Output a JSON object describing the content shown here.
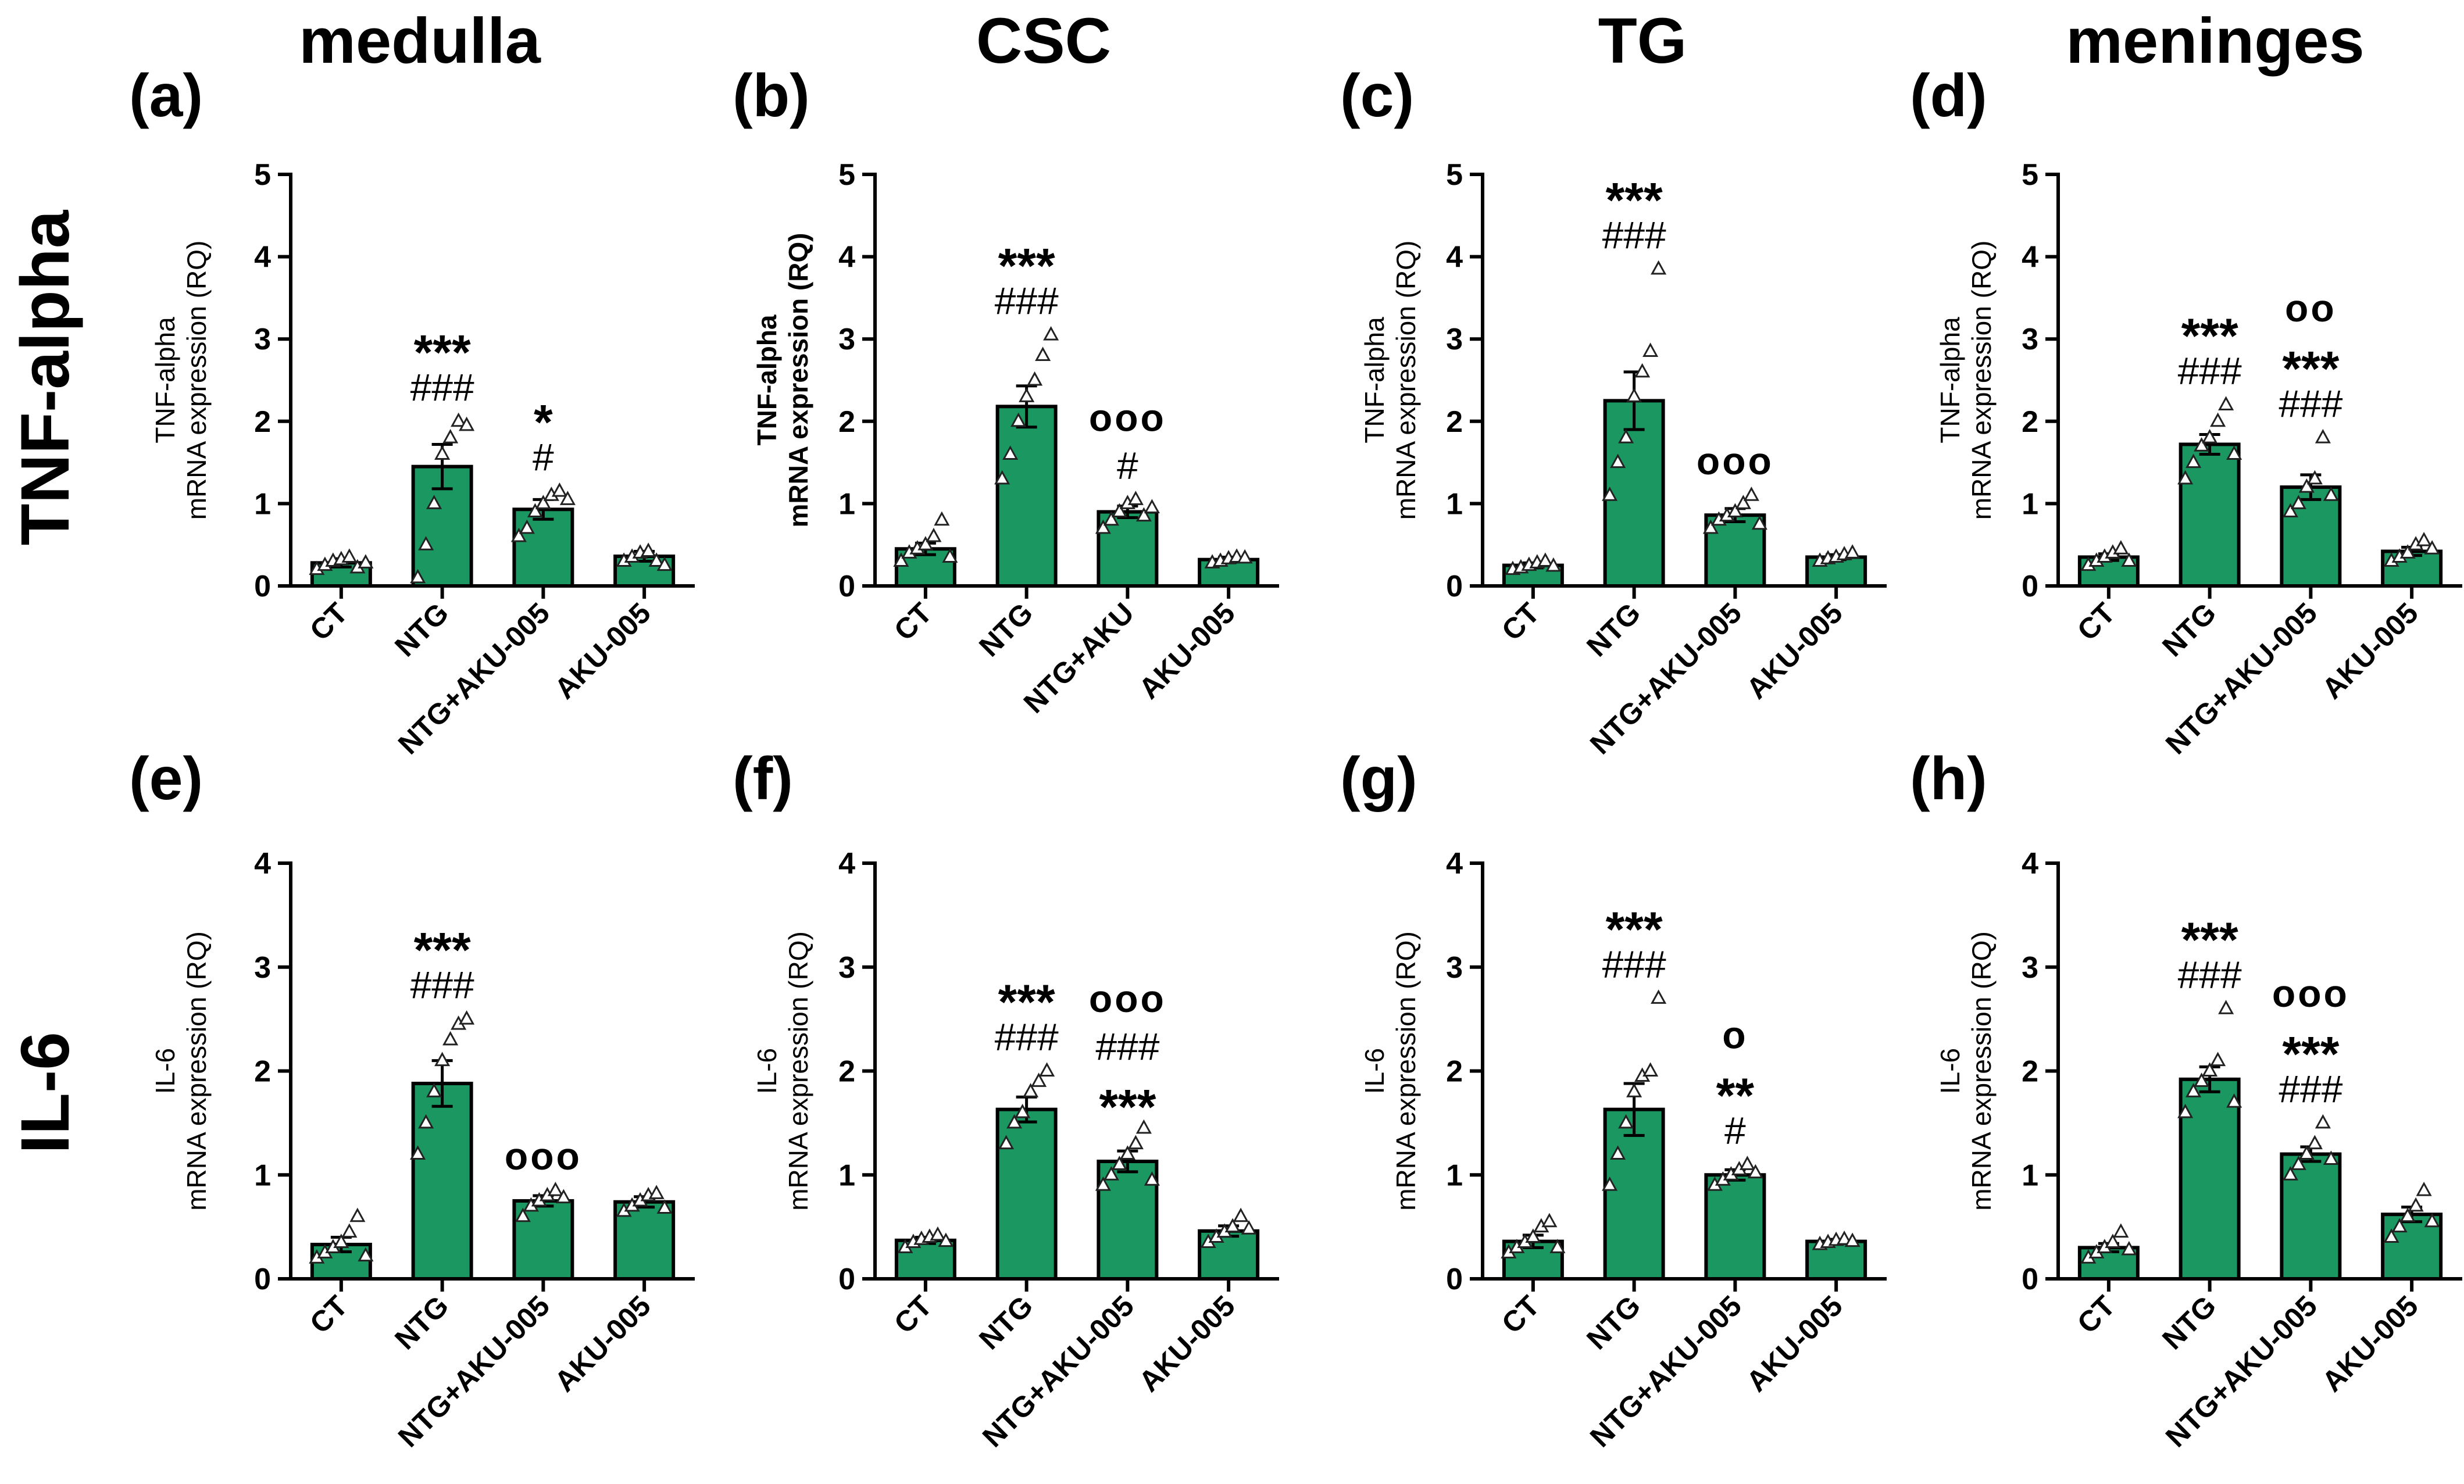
{
  "column_titles": [
    "medulla",
    "CSC",
    "TG",
    "meninges"
  ],
  "row_titles": [
    "TNF-alpha",
    "IL-6"
  ],
  "chart_data": [
    {
      "panel": "(a)",
      "type": "bar",
      "region": "medulla",
      "row": 0,
      "col": 0,
      "ylabel": [
        "TNF-alpha",
        "mRNA expression (RQ)"
      ],
      "ylabel_bold": false,
      "ylim": [
        0,
        5
      ],
      "yticks": [
        0,
        1,
        2,
        3,
        4,
        5
      ],
      "categories": [
        "CT",
        "NTG",
        "NTG+AKU-005",
        "AKU-005"
      ],
      "values": [
        0.28,
        1.45,
        0.93,
        0.36
      ],
      "sem": [
        0.05,
        0.27,
        0.12,
        0.06
      ],
      "points": [
        [
          0.2,
          0.25,
          0.3,
          0.32,
          0.35,
          0.22,
          0.28
        ],
        [
          0.1,
          0.5,
          1.0,
          1.6,
          1.8,
          2.0,
          1.95
        ],
        [
          0.6,
          0.7,
          0.9,
          1.0,
          1.1,
          1.15,
          1.05
        ],
        [
          0.3,
          0.35,
          0.4,
          0.42,
          0.3,
          0.25
        ]
      ],
      "annotations": [
        [],
        [
          "***",
          "###"
        ],
        [
          "*",
          "#"
        ],
        []
      ]
    },
    {
      "panel": "(b)",
      "type": "bar",
      "region": "CSC",
      "row": 0,
      "col": 1,
      "ylabel": [
        "TNF-alpha",
        "mRNA expression (RQ)"
      ],
      "ylabel_bold": true,
      "ylim": [
        0,
        5
      ],
      "yticks": [
        0,
        1,
        2,
        3,
        4,
        5
      ],
      "categories": [
        "CT",
        "NTG",
        "NTG+AKU",
        "AKU-005"
      ],
      "values": [
        0.45,
        2.18,
        0.9,
        0.32
      ],
      "sem": [
        0.07,
        0.25,
        0.07,
        0.03
      ],
      "points": [
        [
          0.3,
          0.4,
          0.45,
          0.5,
          0.6,
          0.8,
          0.35
        ],
        [
          1.3,
          1.6,
          2.0,
          2.3,
          2.5,
          2.8,
          3.05
        ],
        [
          0.7,
          0.8,
          0.9,
          1.0,
          1.05,
          0.85,
          0.95
        ],
        [
          0.28,
          0.3,
          0.33,
          0.35,
          0.34
        ]
      ],
      "annotations": [
        [],
        [
          "***",
          "###"
        ],
        [
          "ooo",
          "#"
        ],
        []
      ]
    },
    {
      "panel": "(c)",
      "type": "bar",
      "region": "TG",
      "row": 0,
      "col": 2,
      "ylabel": [
        "TNF-alpha",
        "mRNA expression (RQ)"
      ],
      "ylabel_bold": false,
      "ylim": [
        0,
        5
      ],
      "yticks": [
        0,
        1,
        2,
        3,
        4,
        5
      ],
      "categories": [
        "CT",
        "NTG",
        "NTG+AKU-005",
        "AKU-005"
      ],
      "values": [
        0.25,
        2.25,
        0.86,
        0.35
      ],
      "sem": [
        0.03,
        0.35,
        0.08,
        0.03
      ],
      "points": [
        [
          0.2,
          0.22,
          0.25,
          0.28,
          0.3,
          0.24
        ],
        [
          1.1,
          1.5,
          1.8,
          2.3,
          2.6,
          2.85,
          3.85
        ],
        [
          0.7,
          0.8,
          0.85,
          0.9,
          1.0,
          1.1,
          0.75
        ],
        [
          0.3,
          0.33,
          0.35,
          0.38,
          0.4
        ]
      ],
      "annotations": [
        [],
        [
          "***",
          "###"
        ],
        [
          "ooo"
        ],
        []
      ]
    },
    {
      "panel": "(d)",
      "type": "bar",
      "region": "meninges",
      "row": 0,
      "col": 3,
      "ylabel": [
        "TNF-alpha",
        "mRNA expression (RQ)"
      ],
      "ylabel_bold": false,
      "ylim": [
        0,
        5
      ],
      "yticks": [
        0,
        1,
        2,
        3,
        4,
        5
      ],
      "categories": [
        "CT",
        "NTG",
        "NTG+AKU-005",
        "AKU-005"
      ],
      "values": [
        0.35,
        1.72,
        1.2,
        0.42
      ],
      "sem": [
        0.04,
        0.12,
        0.15,
        0.05
      ],
      "points": [
        [
          0.25,
          0.3,
          0.35,
          0.4,
          0.45,
          0.3
        ],
        [
          1.3,
          1.5,
          1.7,
          1.8,
          2.0,
          2.2,
          1.6
        ],
        [
          0.9,
          1.0,
          1.2,
          1.3,
          1.8,
          1.1
        ],
        [
          0.3,
          0.35,
          0.4,
          0.5,
          0.55,
          0.45
        ]
      ],
      "annotations": [
        [],
        [
          "***",
          "###"
        ],
        [
          "oo",
          "***",
          "###"
        ],
        []
      ]
    },
    {
      "panel": "(e)",
      "type": "bar",
      "region": "medulla",
      "row": 1,
      "col": 0,
      "ylabel": [
        "IL-6",
        "mRNA expression (RQ)"
      ],
      "ylabel_bold": false,
      "ylim": [
        0,
        4
      ],
      "yticks": [
        0,
        1,
        2,
        3,
        4
      ],
      "categories": [
        "CT",
        "NTG",
        "NTG+AKU-005",
        "AKU-005"
      ],
      "values": [
        0.33,
        1.88,
        0.75,
        0.74
      ],
      "sem": [
        0.07,
        0.22,
        0.05,
        0.05
      ],
      "points": [
        [
          0.2,
          0.25,
          0.3,
          0.35,
          0.45,
          0.6,
          0.22
        ],
        [
          1.2,
          1.5,
          1.8,
          2.1,
          2.3,
          2.45,
          2.5
        ],
        [
          0.6,
          0.7,
          0.75,
          0.8,
          0.85,
          0.78
        ],
        [
          0.65,
          0.7,
          0.75,
          0.8,
          0.82,
          0.68
        ]
      ],
      "annotations": [
        [],
        [
          "***",
          "###"
        ],
        [
          "ooo"
        ],
        []
      ]
    },
    {
      "panel": "(f)",
      "type": "bar",
      "region": "CSC",
      "row": 1,
      "col": 1,
      "ylabel": [
        "IL-6",
        "mRNA expression (RQ)"
      ],
      "ylabel_bold": false,
      "ylim": [
        0,
        4
      ],
      "yticks": [
        0,
        1,
        2,
        3,
        4
      ],
      "categories": [
        "CT",
        "NTG",
        "NTG+AKU-005",
        "AKU-005"
      ],
      "values": [
        0.37,
        1.63,
        1.13,
        0.46
      ],
      "sem": [
        0.03,
        0.12,
        0.1,
        0.05
      ],
      "points": [
        [
          0.3,
          0.35,
          0.38,
          0.4,
          0.42,
          0.36
        ],
        [
          1.3,
          1.5,
          1.6,
          1.8,
          1.9,
          2.0
        ],
        [
          0.9,
          1.0,
          1.1,
          1.2,
          1.3,
          1.45,
          0.95
        ],
        [
          0.35,
          0.4,
          0.45,
          0.5,
          0.6,
          0.48
        ]
      ],
      "annotations": [
        [],
        [
          "***",
          "###"
        ],
        [
          "ooo",
          "###",
          "***"
        ],
        []
      ]
    },
    {
      "panel": "(g)",
      "type": "bar",
      "region": "TG",
      "row": 1,
      "col": 2,
      "ylabel": [
        "IL-6",
        "mRNA expression (RQ)"
      ],
      "ylabel_bold": false,
      "ylim": [
        0,
        4
      ],
      "yticks": [
        0,
        1,
        2,
        3,
        4
      ],
      "categories": [
        "CT",
        "NTG",
        "NTG+AKU-005",
        "AKU-005"
      ],
      "values": [
        0.36,
        1.63,
        1.0,
        0.36
      ],
      "sem": [
        0.06,
        0.25,
        0.05,
        0.02
      ],
      "points": [
        [
          0.25,
          0.3,
          0.35,
          0.4,
          0.5,
          0.55,
          0.3
        ],
        [
          0.9,
          1.2,
          1.5,
          1.8,
          1.95,
          2.0,
          2.7
        ],
        [
          0.9,
          0.95,
          1.0,
          1.05,
          1.1,
          1.02
        ],
        [
          0.33,
          0.35,
          0.37,
          0.38,
          0.36
        ]
      ],
      "annotations": [
        [],
        [
          "***",
          "###"
        ],
        [
          "o",
          "**",
          "#"
        ],
        []
      ]
    },
    {
      "panel": "(h)",
      "type": "bar",
      "region": "meninges",
      "row": 1,
      "col": 3,
      "ylabel": [
        "IL-6",
        "mRNA expression (RQ)"
      ],
      "ylabel_bold": false,
      "ylim": [
        0,
        4
      ],
      "yticks": [
        0,
        1,
        2,
        3,
        4
      ],
      "categories": [
        "CT",
        "NTG",
        "NTG+AKU-005",
        "AKU-005"
      ],
      "values": [
        0.3,
        1.92,
        1.2,
        0.62
      ],
      "sem": [
        0.04,
        0.12,
        0.07,
        0.07
      ],
      "points": [
        [
          0.2,
          0.25,
          0.3,
          0.35,
          0.45,
          0.28
        ],
        [
          1.6,
          1.8,
          1.9,
          2.0,
          2.1,
          2.6,
          1.7
        ],
        [
          1.0,
          1.1,
          1.2,
          1.3,
          1.5,
          1.15
        ],
        [
          0.4,
          0.5,
          0.6,
          0.7,
          0.85,
          0.55
        ]
      ],
      "annotations": [
        [],
        [
          "***",
          "###"
        ],
        [
          "ooo",
          "***",
          "###"
        ],
        []
      ]
    }
  ]
}
